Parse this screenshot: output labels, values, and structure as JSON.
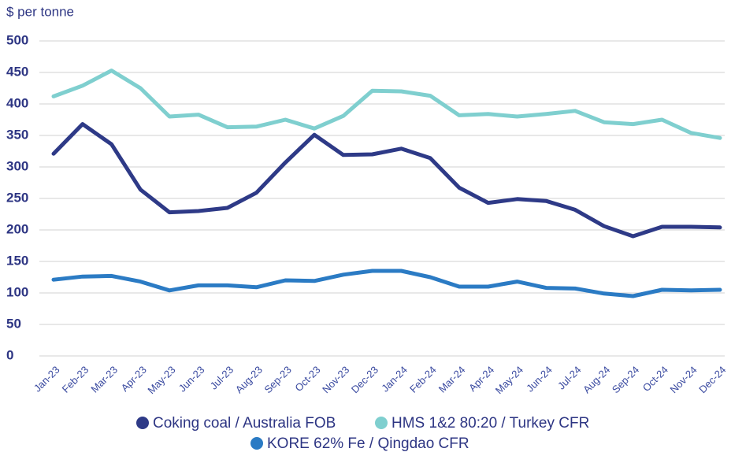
{
  "chart_data": {
    "type": "line",
    "y_label": "$ per tonne",
    "categories": [
      "Jan-23",
      "Feb-23",
      "Mar-23",
      "Apr-23",
      "May-23",
      "Jun-23",
      "Jul-23",
      "Aug-23",
      "Sep-23",
      "Oct-23",
      "Nov-23",
      "Dec-23",
      "Jan-24",
      "Feb-24",
      "Mar-24",
      "Apr-24",
      "May-24",
      "Jun-24",
      "Jul-24",
      "Aug-24",
      "Sep-24",
      "Oct-24",
      "Nov-24",
      "Dec-24"
    ],
    "series": [
      {
        "name": "Coking coal / Australia FOB",
        "color": "#2e3a87",
        "values": [
          321,
          368,
          336,
          264,
          228,
          230,
          235,
          259,
          307,
          351,
          319,
          320,
          329,
          314,
          267,
          243,
          249,
          246,
          232,
          206,
          190,
          205,
          205,
          204
        ]
      },
      {
        "name": "HMS 1&2 80:20 / Turkey CFR",
        "color": "#7fcfcf",
        "values": [
          412,
          429,
          453,
          425,
          380,
          383,
          363,
          364,
          375,
          361,
          381,
          421,
          420,
          413,
          382,
          384,
          380,
          384,
          389,
          371,
          368,
          375,
          354,
          346
        ]
      },
      {
        "name": "KORE 62% Fe / Qingdao CFR",
        "color": "#2b7bc4",
        "values": [
          121,
          126,
          127,
          118,
          104,
          112,
          112,
          109,
          120,
          119,
          129,
          135,
          135,
          125,
          110,
          110,
          118,
          108,
          107,
          99,
          95,
          105,
          104,
          105
        ]
      }
    ],
    "ylim": [
      0,
      500
    ],
    "yticks": [
      0,
      50,
      100,
      150,
      200,
      250,
      300,
      350,
      400,
      450,
      500
    ],
    "grid": true,
    "legend": "bottom"
  }
}
